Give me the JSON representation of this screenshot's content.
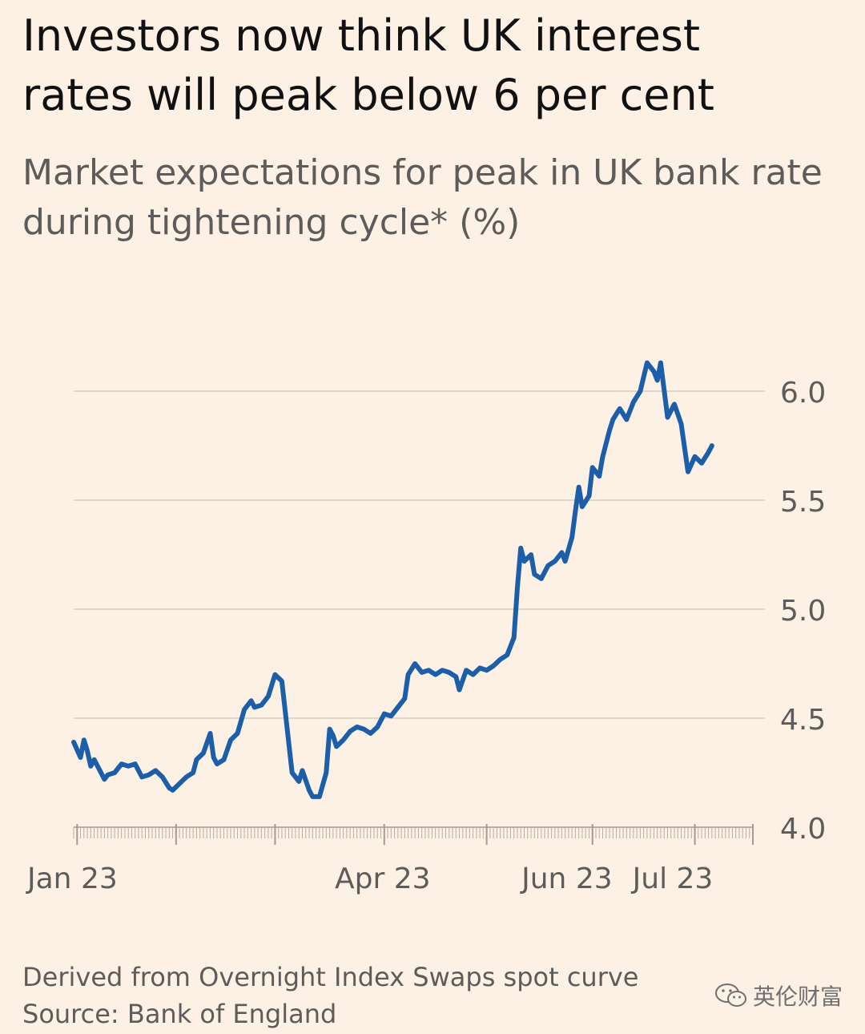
{
  "header": {
    "title": "Investors now think UK interest rates will peak below 6 per cent",
    "subtitle": "Market expectations for peak in UK bank rate during tightening cycle* (%)"
  },
  "footer": {
    "note": "Derived from Overnight Index Swaps spot curve",
    "source": "Source: Bank of England"
  },
  "watermark": {
    "text": "英伦财富",
    "icon": "wechat-icon"
  },
  "colors": {
    "background": "#fdf0e5",
    "line": "#1c5fa8",
    "grid": "#e3d6cb",
    "axis_text": "#5e5c5a"
  },
  "chart_data": {
    "type": "line",
    "title": "Investors now think UK interest rates will peak below 6 per cent",
    "subtitle": "Market expectations for peak in UK bank rate during tightening cycle* (%)",
    "xlabel": "",
    "ylabel": "%",
    "ylim": [
      4.0,
      6.0
    ],
    "yticks": [
      4.0,
      4.5,
      5.0,
      5.5,
      6.0
    ],
    "ytick_labels": [
      "4.0",
      "4.5",
      "5.0",
      "5.5",
      "6.0"
    ],
    "x_range_index": [
      0,
      199
    ],
    "xtick_labels": [
      {
        "label": "Jan 23",
        "index": 1
      },
      {
        "label": "Apr 23",
        "index": 91
      },
      {
        "label": "Jun 23",
        "index": 145
      },
      {
        "label": "Jul 23",
        "index": 176
      }
    ],
    "grid": true,
    "y_axis_side": "right",
    "series": [
      {
        "name": "Peak UK bank rate expectation",
        "points": [
          [
            0,
            4.39
          ],
          [
            2,
            4.32
          ],
          [
            3,
            4.4
          ],
          [
            4,
            4.35
          ],
          [
            5,
            4.28
          ],
          [
            6,
            4.31
          ],
          [
            8,
            4.25
          ],
          [
            9,
            4.22
          ],
          [
            10,
            4.24
          ],
          [
            12,
            4.25
          ],
          [
            14,
            4.29
          ],
          [
            16,
            4.28
          ],
          [
            18,
            4.29
          ],
          [
            20,
            4.23
          ],
          [
            22,
            4.24
          ],
          [
            24,
            4.26
          ],
          [
            26,
            4.23
          ],
          [
            28,
            4.18
          ],
          [
            29,
            4.17
          ],
          [
            31,
            4.2
          ],
          [
            33,
            4.23
          ],
          [
            35,
            4.25
          ],
          [
            36,
            4.31
          ],
          [
            38,
            4.34
          ],
          [
            40,
            4.43
          ],
          [
            41,
            4.32
          ],
          [
            42,
            4.29
          ],
          [
            44,
            4.31
          ],
          [
            46,
            4.4
          ],
          [
            48,
            4.43
          ],
          [
            50,
            4.54
          ],
          [
            52,
            4.58
          ],
          [
            53,
            4.55
          ],
          [
            55,
            4.56
          ],
          [
            57,
            4.6
          ],
          [
            59,
            4.7
          ],
          [
            61,
            4.67
          ],
          [
            64,
            4.25
          ],
          [
            66,
            4.21
          ],
          [
            67,
            4.26
          ],
          [
            69,
            4.17
          ],
          [
            70,
            4.14
          ],
          [
            72,
            4.14
          ],
          [
            74,
            4.25
          ],
          [
            75,
            4.45
          ],
          [
            76,
            4.42
          ],
          [
            77,
            4.37
          ],
          [
            79,
            4.4
          ],
          [
            81,
            4.44
          ],
          [
            83,
            4.46
          ],
          [
            85,
            4.45
          ],
          [
            87,
            4.43
          ],
          [
            89,
            4.46
          ],
          [
            91,
            4.52
          ],
          [
            93,
            4.51
          ],
          [
            95,
            4.55
          ],
          [
            97,
            4.59
          ],
          [
            98,
            4.7
          ],
          [
            100,
            4.75
          ],
          [
            102,
            4.71
          ],
          [
            104,
            4.72
          ],
          [
            106,
            4.7
          ],
          [
            108,
            4.72
          ],
          [
            110,
            4.71
          ],
          [
            112,
            4.69
          ],
          [
            113,
            4.63
          ],
          [
            115,
            4.72
          ],
          [
            117,
            4.7
          ],
          [
            119,
            4.73
          ],
          [
            121,
            4.72
          ],
          [
            123,
            4.74
          ],
          [
            125,
            4.77
          ],
          [
            127,
            4.79
          ],
          [
            129,
            4.87
          ],
          [
            130,
            5.1
          ],
          [
            131,
            5.28
          ],
          [
            132,
            5.22
          ],
          [
            134,
            5.25
          ],
          [
            135,
            5.16
          ],
          [
            137,
            5.14
          ],
          [
            139,
            5.2
          ],
          [
            141,
            5.22
          ],
          [
            143,
            5.26
          ],
          [
            144,
            5.22
          ],
          [
            146,
            5.33
          ],
          [
            147,
            5.45
          ],
          [
            148,
            5.56
          ],
          [
            149,
            5.47
          ],
          [
            151,
            5.52
          ],
          [
            152,
            5.65
          ],
          [
            154,
            5.61
          ],
          [
            155,
            5.7
          ],
          [
            157,
            5.82
          ],
          [
            158,
            5.87
          ],
          [
            160,
            5.92
          ],
          [
            162,
            5.87
          ],
          [
            164,
            5.95
          ],
          [
            166,
            6.0
          ],
          [
            168,
            6.13
          ],
          [
            170,
            6.09
          ],
          [
            171,
            6.05
          ],
          [
            172,
            6.13
          ],
          [
            174,
            5.88
          ],
          [
            176,
            5.94
          ],
          [
            178,
            5.85
          ],
          [
            180,
            5.63
          ],
          [
            182,
            5.7
          ],
          [
            184,
            5.67
          ],
          [
            186,
            5.72
          ],
          [
            187,
            5.75
          ]
        ]
      }
    ]
  }
}
